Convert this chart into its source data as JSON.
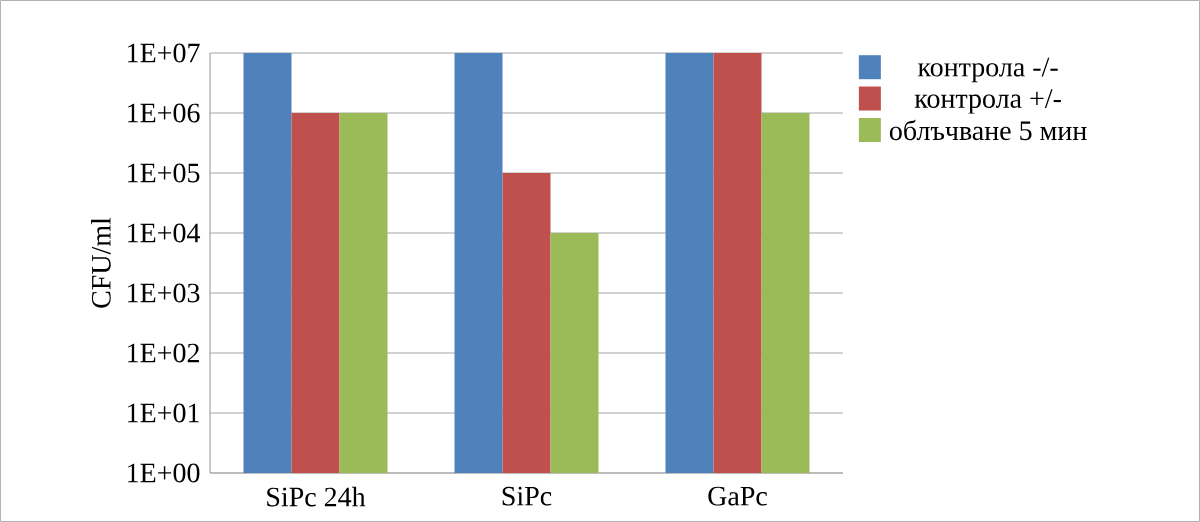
{
  "chart_data": {
    "type": "bar",
    "ylabel": "CFU/ml",
    "categories": [
      "SiPc 24h",
      "SiPc",
      "GaPc"
    ],
    "series": [
      {
        "name": "контрола -/-",
        "color": "#4f81bd",
        "values": [
          10000000,
          10000000,
          10000000
        ]
      },
      {
        "name": "контрола +/-",
        "color": "#c0504d",
        "values": [
          1000000,
          100000,
          10000000
        ]
      },
      {
        "name": "облъчване 5 мин",
        "color": "#9bbb59",
        "values": [
          1000000,
          10000,
          1000000
        ]
      }
    ],
    "log": "y",
    "ylim": [
      1,
      10000000
    ],
    "yticks": [
      {
        "value": 1,
        "label": "1E+00"
      },
      {
        "value": 10,
        "label": "1E+01"
      },
      {
        "value": 100,
        "label": "1E+02"
      },
      {
        "value": 1000,
        "label": "1E+03"
      },
      {
        "value": 10000,
        "label": "1E+04"
      },
      {
        "value": 100000,
        "label": "1E+05"
      },
      {
        "value": 1000000,
        "label": "1E+06"
      },
      {
        "value": 10000000,
        "label": "1E+07"
      }
    ],
    "grid": "y",
    "legend": "right"
  }
}
